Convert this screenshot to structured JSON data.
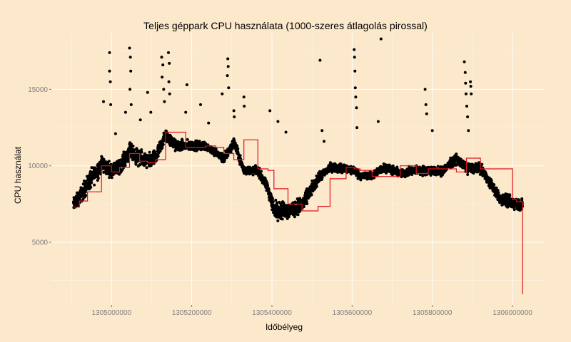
{
  "chart_data": {
    "type": "scatter",
    "title": "Teljes géppark CPU használata (1000-szeres átlagolás pirossal)",
    "xlabel": "Időbélyeg",
    "ylabel": "CPU használat",
    "xlim": [
      1304850000,
      1306080000
    ],
    "ylim": [
      900,
      18700
    ],
    "x_ticks": [
      1305000000,
      1305200000,
      1305400000,
      1305600000,
      1305800000,
      1306000000
    ],
    "x_tick_labels": [
      "1305000000",
      "1305200000",
      "1305400000",
      "1305600000",
      "1305800000",
      "1306000000"
    ],
    "y_ticks": [
      5000,
      10000,
      15000
    ],
    "y_tick_labels": [
      "5000",
      "10000",
      "15000"
    ],
    "grid": true,
    "colors": {
      "panel": "#fce8cb",
      "grid": "#ffffff",
      "points": "#000000",
      "average": "#e0141a"
    },
    "average_series": {
      "x": [
        1304905000,
        1304920000,
        1304940000,
        1304975000,
        1305000000,
        1305020000,
        1305045000,
        1305070000,
        1305090000,
        1305110000,
        1305135000,
        1305185000,
        1305235000,
        1305260000,
        1305280000,
        1305305000,
        1305330000,
        1305365000,
        1305390000,
        1305405000,
        1305440000,
        1305475000,
        1305515000,
        1305545000,
        1305585000,
        1305605000,
        1305620000,
        1305650000,
        1305680000,
        1305720000,
        1305760000,
        1305790000,
        1305820000,
        1305860000,
        1305885000,
        1305920000,
        1305970000,
        1306000000,
        1306010000,
        1306025000,
        1306025000
      ],
      "y": [
        7300,
        7700,
        8300,
        10000,
        9600,
        9900,
        10800,
        10300,
        10200,
        10400,
        12200,
        11200,
        11300,
        11200,
        10800,
        10400,
        11700,
        9800,
        9700,
        8500,
        7500,
        7050,
        7350,
        9150,
        9900,
        9800,
        9700,
        9300,
        9300,
        10000,
        9500,
        9800,
        9800,
        9600,
        10500,
        9800,
        9800,
        7800,
        7650,
        7350,
        1600
      ]
    },
    "scatter_profile": {
      "x": [
        1304905000,
        1304920000,
        1304940000,
        1304975000,
        1305000000,
        1305020000,
        1305045000,
        1305070000,
        1305090000,
        1305110000,
        1305135000,
        1305160000,
        1305185000,
        1305235000,
        1305260000,
        1305280000,
        1305305000,
        1305330000,
        1305365000,
        1305390000,
        1305405000,
        1305440000,
        1305475000,
        1305515000,
        1305545000,
        1305585000,
        1305605000,
        1305620000,
        1305650000,
        1305680000,
        1305720000,
        1305760000,
        1305790000,
        1305820000,
        1305860000,
        1305885000,
        1305920000,
        1305970000,
        1306000000,
        1306025000
      ],
      "low": [
        6800,
        7300,
        7900,
        9300,
        9100,
        9300,
        10200,
        9700,
        9600,
        9800,
        11400,
        10800,
        10800,
        10900,
        10500,
        10000,
        11100,
        9300,
        9300,
        8000,
        6300,
        6300,
        6700,
        8700,
        9500,
        9400,
        9300,
        9000,
        9000,
        9500,
        9100,
        9300,
        9300,
        9200,
        10000,
        9400,
        9400,
        7300,
        7000,
        6800
      ],
      "high": [
        8100,
        8600,
        9700,
        10900,
        10300,
        10600,
        11700,
        11200,
        11000,
        11200,
        12600,
        11800,
        11800,
        11700,
        11200,
        10900,
        12000,
        10100,
        10100,
        9000,
        8000,
        7800,
        8200,
        9600,
        10300,
        10200,
        10100,
        9700,
        9700,
        10300,
        9900,
        10100,
        10100,
        10000,
        10900,
        10300,
        10300,
        8300,
        8200,
        8000
      ]
    },
    "outliers": [
      {
        "x": 1304995000,
        "y": 17400
      },
      {
        "x": 1304995000,
        "y": 16200
      },
      {
        "x": 1304997000,
        "y": 15500
      },
      {
        "x": 1304980000,
        "y": 14200
      },
      {
        "x": 1304998000,
        "y": 14000
      },
      {
        "x": 1305010000,
        "y": 12100
      },
      {
        "x": 1305035000,
        "y": 13500
      },
      {
        "x": 1305045000,
        "y": 17700
      },
      {
        "x": 1305047000,
        "y": 17100
      },
      {
        "x": 1305048000,
        "y": 16200
      },
      {
        "x": 1305046000,
        "y": 15000
      },
      {
        "x": 1305049000,
        "y": 14000
      },
      {
        "x": 1305072000,
        "y": 13000
      },
      {
        "x": 1305090000,
        "y": 14800
      },
      {
        "x": 1305098000,
        "y": 13500
      },
      {
        "x": 1305125000,
        "y": 17100
      },
      {
        "x": 1305128000,
        "y": 16600
      },
      {
        "x": 1305126000,
        "y": 15800
      },
      {
        "x": 1305130000,
        "y": 15000
      },
      {
        "x": 1305132000,
        "y": 14200
      },
      {
        "x": 1305142000,
        "y": 17400
      },
      {
        "x": 1305144000,
        "y": 16700
      },
      {
        "x": 1305143000,
        "y": 15500
      },
      {
        "x": 1305145000,
        "y": 14700
      },
      {
        "x": 1305188000,
        "y": 15300
      },
      {
        "x": 1305185000,
        "y": 13500
      },
      {
        "x": 1305222000,
        "y": 14000
      },
      {
        "x": 1305242000,
        "y": 12800
      },
      {
        "x": 1305276000,
        "y": 14700
      },
      {
        "x": 1305290000,
        "y": 17000
      },
      {
        "x": 1305291000,
        "y": 16500
      },
      {
        "x": 1305289000,
        "y": 15900
      },
      {
        "x": 1305292000,
        "y": 15100
      },
      {
        "x": 1305305000,
        "y": 13600
      },
      {
        "x": 1305306000,
        "y": 13200
      },
      {
        "x": 1305330000,
        "y": 14500
      },
      {
        "x": 1305331000,
        "y": 13900
      },
      {
        "x": 1305395000,
        "y": 13600
      },
      {
        "x": 1305415000,
        "y": 12900
      },
      {
        "x": 1305435000,
        "y": 12200
      },
      {
        "x": 1305520000,
        "y": 16900
      },
      {
        "x": 1305525000,
        "y": 12300
      },
      {
        "x": 1305530000,
        "y": 11600
      },
      {
        "x": 1305605000,
        "y": 17600
      },
      {
        "x": 1305606000,
        "y": 17100
      },
      {
        "x": 1305607000,
        "y": 16200
      },
      {
        "x": 1305608000,
        "y": 15100
      },
      {
        "x": 1305609000,
        "y": 14500
      },
      {
        "x": 1305611000,
        "y": 13800
      },
      {
        "x": 1305612000,
        "y": 12500
      },
      {
        "x": 1305665000,
        "y": 12900
      },
      {
        "x": 1305672000,
        "y": 18300
      },
      {
        "x": 1305782000,
        "y": 15000
      },
      {
        "x": 1305784000,
        "y": 14000
      },
      {
        "x": 1305786000,
        "y": 13400
      },
      {
        "x": 1305800000,
        "y": 12300
      },
      {
        "x": 1305880000,
        "y": 16800
      },
      {
        "x": 1305882000,
        "y": 16100
      },
      {
        "x": 1305883000,
        "y": 15400
      },
      {
        "x": 1305884000,
        "y": 14700
      },
      {
        "x": 1305886000,
        "y": 13900
      },
      {
        "x": 1305888000,
        "y": 13200
      },
      {
        "x": 1305890000,
        "y": 12300
      },
      {
        "x": 1305895000,
        "y": 15500
      },
      {
        "x": 1305896000,
        "y": 15200
      },
      {
        "x": 1305897000,
        "y": 14700
      }
    ]
  }
}
